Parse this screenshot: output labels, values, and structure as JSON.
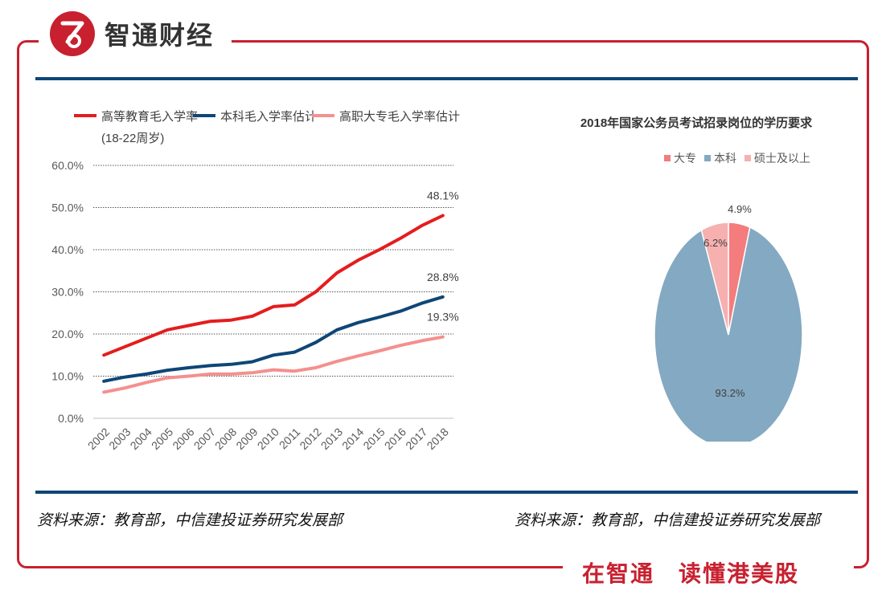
{
  "brand": {
    "name": "智通财经",
    "slogan": "在智通　读懂港美股"
  },
  "colors": {
    "brand_red": "#c8202f",
    "rule_navy": "#0e4677",
    "series_red": "#e41d1d",
    "series_navy": "#0e4677",
    "series_pink": "#f4908e",
    "pie_dazhuan": "#f47c7c",
    "pie_benke": "#84a9c2",
    "pie_shuoshi": "#f6b0b0"
  },
  "sources": {
    "left": "资料来源：教育部，中信建投证券研究发展部",
    "right": "资料来源：教育部，中信建投证券研究发展部"
  },
  "chart_data": [
    {
      "type": "line",
      "title": "",
      "xlabel": "",
      "ylabel": "",
      "x": [
        "2002",
        "2003",
        "2004",
        "2005",
        "2006",
        "2007",
        "2008",
        "2009",
        "2010",
        "2011",
        "2012",
        "2013",
        "2014",
        "2015",
        "2016",
        "2017",
        "2018"
      ],
      "ylim": [
        0,
        60
      ],
      "yticks": [
        "0.0%",
        "10.0%",
        "20.0%",
        "30.0%",
        "40.0%",
        "50.0%",
        "60.0%"
      ],
      "grid": true,
      "legend_position": "top",
      "series": [
        {
          "name": "高等教育毛入学率",
          "name_line2": "(18-22周岁)",
          "color": "#e41d1d",
          "values": [
            15.0,
            17.0,
            19.0,
            21.0,
            22.0,
            23.0,
            23.3,
            24.2,
            26.5,
            26.9,
            30.0,
            34.5,
            37.5,
            40.0,
            42.7,
            45.7,
            48.1
          ],
          "end_label": "48.1%"
        },
        {
          "name": "本科毛入学率估计",
          "color": "#0e4677",
          "values": [
            8.8,
            9.8,
            10.5,
            11.4,
            12.0,
            12.5,
            12.8,
            13.4,
            15.0,
            15.7,
            18.0,
            21.0,
            22.7,
            24.0,
            25.4,
            27.3,
            28.8
          ],
          "end_label": "28.8%"
        },
        {
          "name": "高职大专毛入学率估计",
          "color": "#f4908e",
          "values": [
            6.2,
            7.2,
            8.5,
            9.6,
            10.0,
            10.5,
            10.5,
            10.8,
            11.5,
            11.2,
            12.0,
            13.5,
            14.8,
            16.0,
            17.3,
            18.4,
            19.3
          ],
          "end_label": "19.3%"
        }
      ]
    },
    {
      "type": "pie",
      "title": "2018年国家公务员考试招录岗位的学历要求",
      "legend_position": "top",
      "slices": [
        {
          "label": "大专",
          "value": 4.9,
          "text": "4.9%",
          "color": "#f47c7c"
        },
        {
          "label": "本科",
          "value": 93.2,
          "text": "93.2%",
          "color": "#84a9c2"
        },
        {
          "label": "硕士及以上",
          "value": 6.2,
          "text": "6.2%",
          "color": "#f6b0b0"
        }
      ]
    }
  ]
}
